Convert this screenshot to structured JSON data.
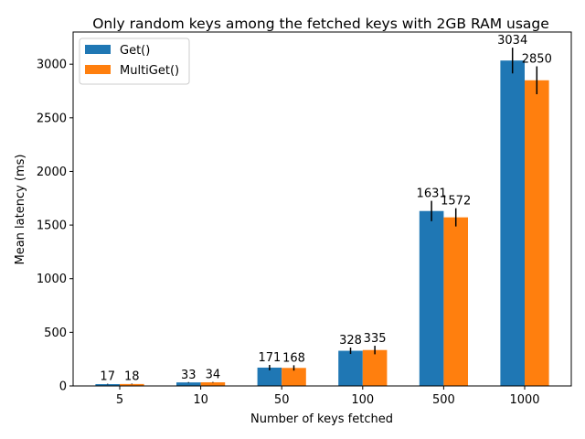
{
  "chart_data": {
    "type": "bar",
    "title": "Only random keys among the fetched keys with 2GB RAM usage",
    "xlabel": "Number of keys fetched",
    "ylabel": "Mean latency (ms)",
    "categories": [
      "5",
      "10",
      "50",
      "100",
      "500",
      "1000"
    ],
    "series": [
      {
        "name": "Get()",
        "color": "#1f77b4",
        "values": [
          17,
          33,
          171,
          328,
          1631,
          3034
        ],
        "error": [
          3,
          3,
          25,
          30,
          95,
          120
        ]
      },
      {
        "name": "MultiGet()",
        "color": "#ff7f0e",
        "values": [
          18,
          34,
          168,
          335,
          1572,
          2850
        ],
        "error": [
          3,
          3,
          25,
          40,
          85,
          130
        ]
      }
    ],
    "ylim": [
      0,
      3300
    ],
    "yticks": [
      0,
      500,
      1000,
      1500,
      2000,
      2500,
      3000
    ],
    "grid": false,
    "legend_position": "top-left",
    "error_bar_color": "#000000"
  }
}
